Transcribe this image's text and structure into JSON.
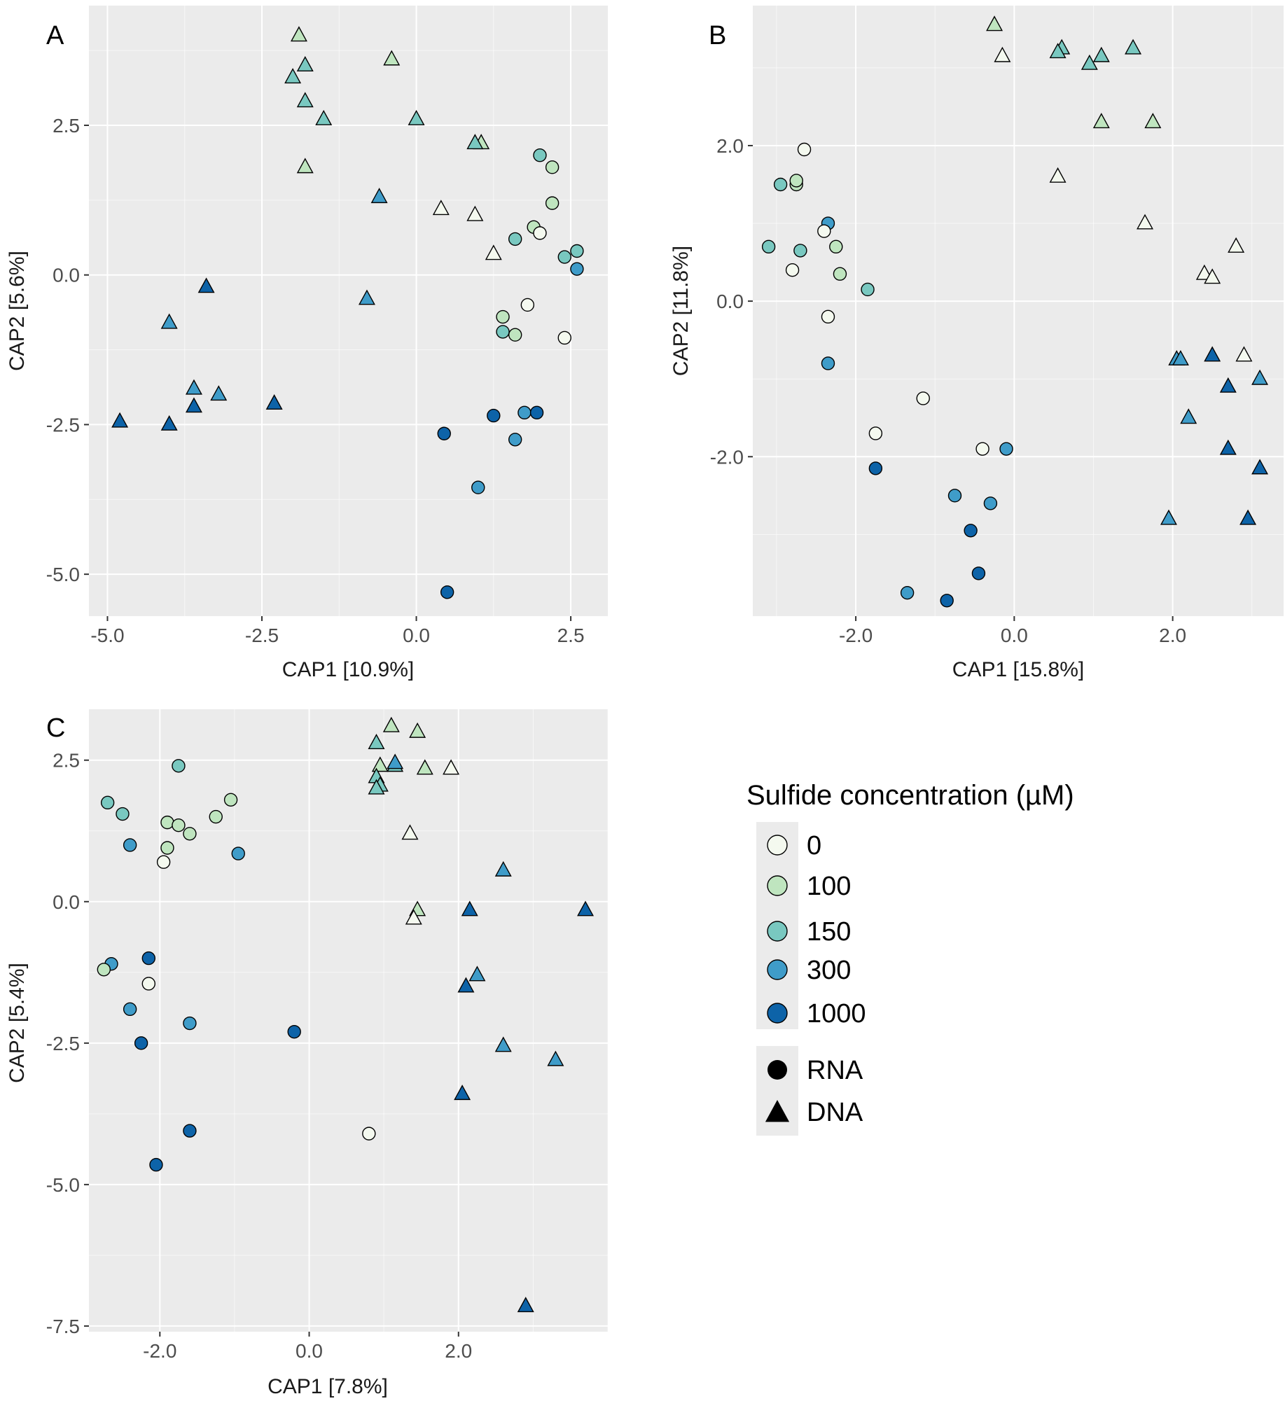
{
  "colors": {
    "0": "#f4f9ef",
    "100": "#bfe5bf",
    "150": "#79c8c0",
    "300": "#3f9cc9",
    "1000": "#0d63a8"
  },
  "legend": {
    "title": "Sulfide concentration (µM)",
    "concentrations": [
      "0",
      "100",
      "150",
      "300",
      "1000"
    ],
    "shapes": [
      {
        "label": "RNA",
        "shape": "circle"
      },
      {
        "label": "DNA",
        "shape": "triangle"
      }
    ]
  },
  "chart_data": [
    {
      "type": "scatter",
      "panel": "A",
      "xlabel": "CAP1 [10.9%]",
      "ylabel": "CAP2 [5.6%]",
      "xlim": [
        -5.3,
        3.1
      ],
      "ylim": [
        -5.7,
        4.5
      ],
      "xticks": [
        -5.0,
        -2.5,
        0.0,
        2.5
      ],
      "xtick_labels": [
        "-5.0",
        "-2.5",
        "0.0",
        "2.5"
      ],
      "yticks": [
        -5.0,
        -2.5,
        0.0,
        2.5
      ],
      "ytick_labels": [
        "-5.0",
        "-2.5",
        "0.0",
        "2.5"
      ],
      "points": [
        {
          "x": -1.9,
          "y": 4.0,
          "s": "100",
          "m": "DNA"
        },
        {
          "x": -1.8,
          "y": 3.5,
          "s": "150",
          "m": "DNA"
        },
        {
          "x": -2.0,
          "y": 3.3,
          "s": "150",
          "m": "DNA"
        },
        {
          "x": -0.4,
          "y": 3.6,
          "s": "100",
          "m": "DNA"
        },
        {
          "x": -1.8,
          "y": 2.9,
          "s": "150",
          "m": "DNA"
        },
        {
          "x": -1.5,
          "y": 2.6,
          "s": "150",
          "m": "DNA"
        },
        {
          "x": 0.0,
          "y": 2.6,
          "s": "150",
          "m": "DNA"
        },
        {
          "x": -1.8,
          "y": 1.8,
          "s": "100",
          "m": "DNA"
        },
        {
          "x": 1.05,
          "y": 2.2,
          "s": "100",
          "m": "DNA"
        },
        {
          "x": 0.95,
          "y": 2.2,
          "s": "150",
          "m": "DNA"
        },
        {
          "x": -0.6,
          "y": 1.3,
          "s": "300",
          "m": "DNA"
        },
        {
          "x": 0.4,
          "y": 1.1,
          "s": "0",
          "m": "DNA"
        },
        {
          "x": 0.95,
          "y": 1.0,
          "s": "0",
          "m": "DNA"
        },
        {
          "x": 1.25,
          "y": 0.35,
          "s": "0",
          "m": "DNA"
        },
        {
          "x": -3.4,
          "y": -0.2,
          "s": "1000",
          "m": "DNA"
        },
        {
          "x": -0.8,
          "y": -0.4,
          "s": "300",
          "m": "DNA"
        },
        {
          "x": -4.0,
          "y": -0.8,
          "s": "300",
          "m": "DNA"
        },
        {
          "x": -3.6,
          "y": -1.9,
          "s": "300",
          "m": "DNA"
        },
        {
          "x": -3.2,
          "y": -2.0,
          "s": "300",
          "m": "DNA"
        },
        {
          "x": -3.6,
          "y": -2.2,
          "s": "1000",
          "m": "DNA"
        },
        {
          "x": -2.3,
          "y": -2.15,
          "s": "1000",
          "m": "DNA"
        },
        {
          "x": -4.8,
          "y": -2.45,
          "s": "1000",
          "m": "DNA"
        },
        {
          "x": -4.0,
          "y": -2.5,
          "s": "1000",
          "m": "DNA"
        },
        {
          "x": 2.0,
          "y": 2.0,
          "s": "150",
          "m": "RNA"
        },
        {
          "x": 2.2,
          "y": 1.8,
          "s": "100",
          "m": "RNA"
        },
        {
          "x": 2.2,
          "y": 1.2,
          "s": "100",
          "m": "RNA"
        },
        {
          "x": 1.6,
          "y": 0.6,
          "s": "150",
          "m": "RNA"
        },
        {
          "x": 1.9,
          "y": 0.8,
          "s": "100",
          "m": "RNA"
        },
        {
          "x": 2.0,
          "y": 0.7,
          "s": "0",
          "m": "RNA"
        },
        {
          "x": 2.6,
          "y": 0.4,
          "s": "150",
          "m": "RNA"
        },
        {
          "x": 2.4,
          "y": 0.3,
          "s": "150",
          "m": "RNA"
        },
        {
          "x": 2.6,
          "y": 0.1,
          "s": "300",
          "m": "RNA"
        },
        {
          "x": 1.8,
          "y": -0.5,
          "s": "0",
          "m": "RNA"
        },
        {
          "x": 1.4,
          "y": -0.7,
          "s": "100",
          "m": "RNA"
        },
        {
          "x": 1.4,
          "y": -0.95,
          "s": "150",
          "m": "RNA"
        },
        {
          "x": 1.6,
          "y": -1.0,
          "s": "100",
          "m": "RNA"
        },
        {
          "x": 2.4,
          "y": -1.05,
          "s": "0",
          "m": "RNA"
        },
        {
          "x": 1.25,
          "y": -2.35,
          "s": "1000",
          "m": "RNA"
        },
        {
          "x": 1.75,
          "y": -2.3,
          "s": "300",
          "m": "RNA"
        },
        {
          "x": 1.95,
          "y": -2.3,
          "s": "1000",
          "m": "RNA"
        },
        {
          "x": 0.45,
          "y": -2.65,
          "s": "1000",
          "m": "RNA"
        },
        {
          "x": 1.6,
          "y": -2.75,
          "s": "300",
          "m": "RNA"
        },
        {
          "x": 1.0,
          "y": -3.55,
          "s": "300",
          "m": "RNA"
        },
        {
          "x": 0.5,
          "y": -5.3,
          "s": "1000",
          "m": "RNA"
        }
      ]
    },
    {
      "type": "scatter",
      "panel": "B",
      "xlabel": "CAP1 [15.8%]",
      "ylabel": "CAP2 [11.8%]",
      "xlim": [
        -3.3,
        3.4
      ],
      "ylim": [
        -4.05,
        3.8
      ],
      "xticks": [
        -2.0,
        0.0,
        2.0
      ],
      "xtick_labels": [
        "-2.0",
        "0.0",
        "2.0"
      ],
      "yticks": [
        -2.0,
        0.0,
        2.0
      ],
      "ytick_labels": [
        "-2.0",
        "0.0",
        "2.0"
      ],
      "points": [
        {
          "x": -0.25,
          "y": 3.55,
          "s": "100",
          "m": "DNA"
        },
        {
          "x": -0.15,
          "y": 3.15,
          "s": "0",
          "m": "DNA"
        },
        {
          "x": 0.6,
          "y": 3.25,
          "s": "150",
          "m": "DNA"
        },
        {
          "x": 0.55,
          "y": 3.2,
          "s": "150",
          "m": "DNA"
        },
        {
          "x": 0.95,
          "y": 3.05,
          "s": "150",
          "m": "DNA"
        },
        {
          "x": 1.1,
          "y": 3.15,
          "s": "150",
          "m": "DNA"
        },
        {
          "x": 1.5,
          "y": 3.25,
          "s": "150",
          "m": "DNA"
        },
        {
          "x": 1.1,
          "y": 2.3,
          "s": "100",
          "m": "DNA"
        },
        {
          "x": 1.75,
          "y": 2.3,
          "s": "100",
          "m": "DNA"
        },
        {
          "x": 0.55,
          "y": 1.6,
          "s": "0",
          "m": "DNA"
        },
        {
          "x": 1.65,
          "y": 1.0,
          "s": "0",
          "m": "DNA"
        },
        {
          "x": 2.8,
          "y": 0.7,
          "s": "0",
          "m": "DNA"
        },
        {
          "x": 2.4,
          "y": 0.35,
          "s": "0",
          "m": "DNA"
        },
        {
          "x": 2.5,
          "y": 0.3,
          "s": "0",
          "m": "DNA"
        },
        {
          "x": 2.9,
          "y": -0.7,
          "s": "0",
          "m": "DNA"
        },
        {
          "x": 2.5,
          "y": -0.7,
          "s": "1000",
          "m": "DNA"
        },
        {
          "x": 2.05,
          "y": -0.75,
          "s": "300",
          "m": "DNA"
        },
        {
          "x": 2.1,
          "y": -0.75,
          "s": "300",
          "m": "DNA"
        },
        {
          "x": 2.7,
          "y": -1.1,
          "s": "1000",
          "m": "DNA"
        },
        {
          "x": 3.1,
          "y": -1.0,
          "s": "300",
          "m": "DNA"
        },
        {
          "x": 2.2,
          "y": -1.5,
          "s": "300",
          "m": "DNA"
        },
        {
          "x": 2.7,
          "y": -1.9,
          "s": "1000",
          "m": "DNA"
        },
        {
          "x": 3.1,
          "y": -2.15,
          "s": "1000",
          "m": "DNA"
        },
        {
          "x": 1.95,
          "y": -2.8,
          "s": "300",
          "m": "DNA"
        },
        {
          "x": 2.95,
          "y": -2.8,
          "s": "1000",
          "m": "DNA"
        },
        {
          "x": -2.65,
          "y": 1.95,
          "s": "0",
          "m": "RNA"
        },
        {
          "x": -2.95,
          "y": 1.5,
          "s": "150",
          "m": "RNA"
        },
        {
          "x": -2.75,
          "y": 1.5,
          "s": "100",
          "m": "RNA"
        },
        {
          "x": -2.75,
          "y": 1.55,
          "s": "100",
          "m": "RNA"
        },
        {
          "x": -2.35,
          "y": 1.0,
          "s": "300",
          "m": "RNA"
        },
        {
          "x": -2.4,
          "y": 0.9,
          "s": "0",
          "m": "RNA"
        },
        {
          "x": -3.1,
          "y": 0.7,
          "s": "150",
          "m": "RNA"
        },
        {
          "x": -2.7,
          "y": 0.65,
          "s": "150",
          "m": "RNA"
        },
        {
          "x": -2.25,
          "y": 0.7,
          "s": "100",
          "m": "RNA"
        },
        {
          "x": -2.8,
          "y": 0.4,
          "s": "0",
          "m": "RNA"
        },
        {
          "x": -2.2,
          "y": 0.35,
          "s": "100",
          "m": "RNA"
        },
        {
          "x": -1.85,
          "y": 0.15,
          "s": "150",
          "m": "RNA"
        },
        {
          "x": -2.35,
          "y": -0.2,
          "s": "0",
          "m": "RNA"
        },
        {
          "x": -2.35,
          "y": -0.8,
          "s": "300",
          "m": "RNA"
        },
        {
          "x": -1.15,
          "y": -1.25,
          "s": "0",
          "m": "RNA"
        },
        {
          "x": -1.75,
          "y": -1.7,
          "s": "0",
          "m": "RNA"
        },
        {
          "x": -0.4,
          "y": -1.9,
          "s": "0",
          "m": "RNA"
        },
        {
          "x": -0.1,
          "y": -1.9,
          "s": "300",
          "m": "RNA"
        },
        {
          "x": -1.75,
          "y": -2.15,
          "s": "1000",
          "m": "RNA"
        },
        {
          "x": -0.75,
          "y": -2.5,
          "s": "300",
          "m": "RNA"
        },
        {
          "x": -0.3,
          "y": -2.6,
          "s": "300",
          "m": "RNA"
        },
        {
          "x": -0.55,
          "y": -2.95,
          "s": "1000",
          "m": "RNA"
        },
        {
          "x": -0.45,
          "y": -3.5,
          "s": "1000",
          "m": "RNA"
        },
        {
          "x": -1.35,
          "y": -3.75,
          "s": "300",
          "m": "RNA"
        },
        {
          "x": -0.85,
          "y": -3.85,
          "s": "1000",
          "m": "RNA"
        }
      ]
    },
    {
      "type": "scatter",
      "panel": "C",
      "xlabel": "CAP1 [7.8%]",
      "ylabel": "CAP2 [5.4%]",
      "xlim": [
        -2.95,
        4.0
      ],
      "ylim": [
        -7.6,
        3.4
      ],
      "xticks": [
        -2.0,
        0.0,
        2.0
      ],
      "xtick_labels": [
        "-2.0",
        "0.0",
        "2.0"
      ],
      "yticks": [
        -7.5,
        -5.0,
        -2.5,
        0.0,
        2.5
      ],
      "ytick_labels": [
        "-7.5",
        "-5.0",
        "-2.5",
        "0.0",
        "2.5"
      ],
      "points": [
        {
          "x": 1.1,
          "y": 3.1,
          "s": "100",
          "m": "DNA"
        },
        {
          "x": 1.45,
          "y": 3.0,
          "s": "100",
          "m": "DNA"
        },
        {
          "x": 0.9,
          "y": 2.8,
          "s": "150",
          "m": "DNA"
        },
        {
          "x": 0.95,
          "y": 2.4,
          "s": "100",
          "m": "DNA"
        },
        {
          "x": 1.15,
          "y": 2.4,
          "s": "150",
          "m": "DNA"
        },
        {
          "x": 1.15,
          "y": 2.45,
          "s": "300",
          "m": "DNA"
        },
        {
          "x": 1.55,
          "y": 2.35,
          "s": "100",
          "m": "DNA"
        },
        {
          "x": 1.9,
          "y": 2.35,
          "s": "0",
          "m": "DNA"
        },
        {
          "x": 0.9,
          "y": 2.2,
          "s": "150",
          "m": "DNA"
        },
        {
          "x": 0.95,
          "y": 2.05,
          "s": "150",
          "m": "DNA"
        },
        {
          "x": 0.9,
          "y": 2.0,
          "s": "150",
          "m": "DNA"
        },
        {
          "x": 1.35,
          "y": 1.2,
          "s": "0",
          "m": "DNA"
        },
        {
          "x": 2.6,
          "y": 0.55,
          "s": "300",
          "m": "DNA"
        },
        {
          "x": 1.45,
          "y": -0.15,
          "s": "100",
          "m": "DNA"
        },
        {
          "x": 1.4,
          "y": -0.3,
          "s": "0",
          "m": "DNA"
        },
        {
          "x": 2.15,
          "y": -0.15,
          "s": "1000",
          "m": "DNA"
        },
        {
          "x": 3.7,
          "y": -0.15,
          "s": "1000",
          "m": "DNA"
        },
        {
          "x": 2.25,
          "y": -1.3,
          "s": "300",
          "m": "DNA"
        },
        {
          "x": 2.1,
          "y": -1.5,
          "s": "1000",
          "m": "DNA"
        },
        {
          "x": 2.6,
          "y": -2.55,
          "s": "300",
          "m": "DNA"
        },
        {
          "x": 3.3,
          "y": -2.8,
          "s": "300",
          "m": "DNA"
        },
        {
          "x": 2.05,
          "y": -3.4,
          "s": "1000",
          "m": "DNA"
        },
        {
          "x": 2.9,
          "y": -7.15,
          "s": "1000",
          "m": "DNA"
        },
        {
          "x": -1.75,
          "y": 2.4,
          "s": "150",
          "m": "RNA"
        },
        {
          "x": -2.7,
          "y": 1.75,
          "s": "150",
          "m": "RNA"
        },
        {
          "x": -2.5,
          "y": 1.55,
          "s": "150",
          "m": "RNA"
        },
        {
          "x": -1.05,
          "y": 1.8,
          "s": "100",
          "m": "RNA"
        },
        {
          "x": -1.25,
          "y": 1.5,
          "s": "100",
          "m": "RNA"
        },
        {
          "x": -1.9,
          "y": 1.4,
          "s": "100",
          "m": "RNA"
        },
        {
          "x": -1.75,
          "y": 1.35,
          "s": "100",
          "m": "RNA"
        },
        {
          "x": -1.6,
          "y": 1.2,
          "s": "100",
          "m": "RNA"
        },
        {
          "x": -2.4,
          "y": 1.0,
          "s": "300",
          "m": "RNA"
        },
        {
          "x": -1.9,
          "y": 0.95,
          "s": "100",
          "m": "RNA"
        },
        {
          "x": -0.95,
          "y": 0.85,
          "s": "300",
          "m": "RNA"
        },
        {
          "x": -1.95,
          "y": 0.7,
          "s": "0",
          "m": "RNA"
        },
        {
          "x": -2.15,
          "y": -1.0,
          "s": "1000",
          "m": "RNA"
        },
        {
          "x": -2.65,
          "y": -1.1,
          "s": "300",
          "m": "RNA"
        },
        {
          "x": -2.75,
          "y": -1.2,
          "s": "100",
          "m": "RNA"
        },
        {
          "x": -2.15,
          "y": -1.45,
          "s": "0",
          "m": "RNA"
        },
        {
          "x": -2.4,
          "y": -1.9,
          "s": "300",
          "m": "RNA"
        },
        {
          "x": -1.6,
          "y": -2.15,
          "s": "300",
          "m": "RNA"
        },
        {
          "x": -0.2,
          "y": -2.3,
          "s": "1000",
          "m": "RNA"
        },
        {
          "x": -2.25,
          "y": -2.5,
          "s": "1000",
          "m": "RNA"
        },
        {
          "x": -1.6,
          "y": -4.05,
          "s": "1000",
          "m": "RNA"
        },
        {
          "x": 0.8,
          "y": -4.1,
          "s": "0",
          "m": "RNA"
        },
        {
          "x": -2.05,
          "y": -4.65,
          "s": "1000",
          "m": "RNA"
        }
      ]
    }
  ]
}
